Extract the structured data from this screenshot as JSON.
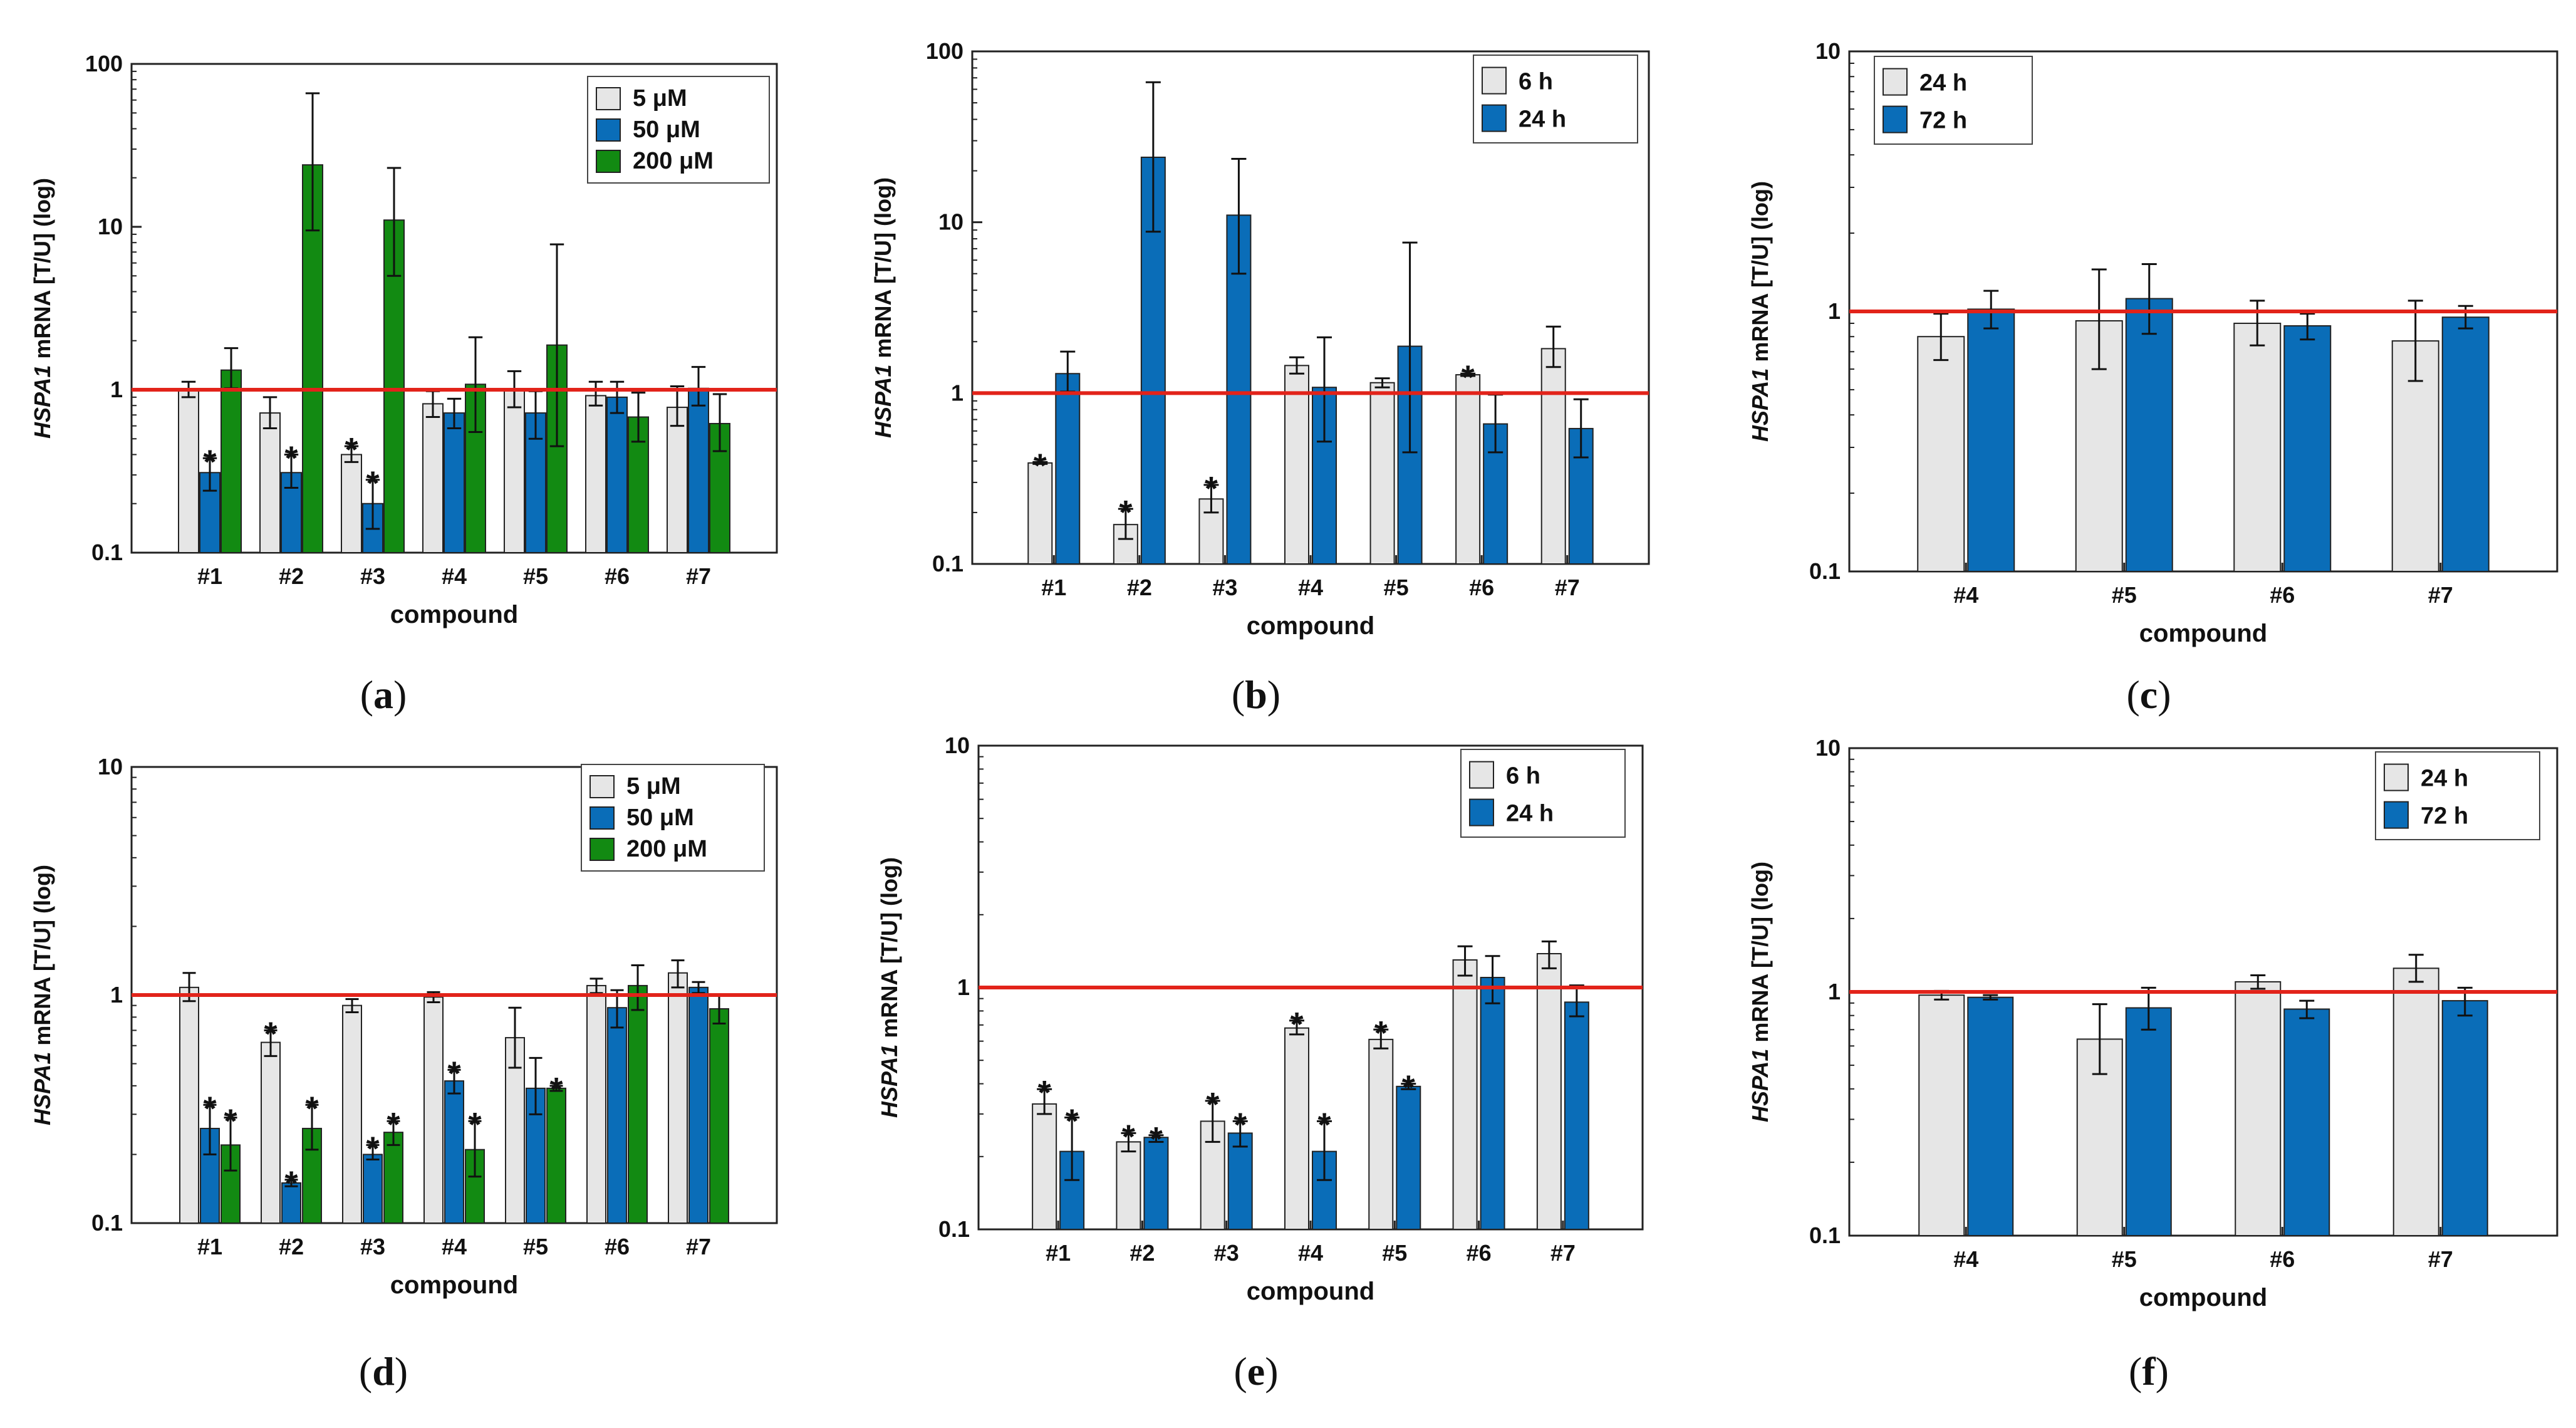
{
  "colors": {
    "light": "#e6e6e6",
    "blue": "#0a6db8",
    "green": "#128a12",
    "reference_line": "#e2231a"
  },
  "chart_data": [
    {
      "type": "bar",
      "panel": "a",
      "xlabel": "compound",
      "ylabel_italic": "HSPA1",
      "ylabel_rest": " mRNA  [T/U] (log)",
      "yscale": "log",
      "ylim": [
        0.1,
        100
      ],
      "yticks": [
        "0.1",
        "1",
        "10",
        "100"
      ],
      "reference_line": 1,
      "legend_position": "top-right",
      "categories": [
        "#1",
        "#2",
        "#3",
        "#4",
        "#5",
        "#6",
        "#7"
      ],
      "series": [
        {
          "name": "5 μM",
          "color": "light",
          "values": [
            1.0,
            0.72,
            0.4,
            0.82,
            1.0,
            0.92,
            0.78
          ],
          "err_low": [
            0.9,
            0.58,
            0.36,
            0.68,
            0.78,
            0.8,
            0.6
          ],
          "err_high": [
            1.12,
            0.9,
            0.45,
            0.98,
            1.3,
            1.12,
            1.05
          ],
          "stars": [
            false,
            false,
            true,
            false,
            false,
            false,
            false
          ]
        },
        {
          "name": "50 μM",
          "color": "blue",
          "values": [
            0.31,
            0.31,
            0.2,
            0.72,
            0.72,
            0.9,
            1.02
          ],
          "err_low": [
            0.24,
            0.25,
            0.14,
            0.58,
            0.5,
            0.72,
            0.8
          ],
          "err_high": [
            0.38,
            0.4,
            0.28,
            0.88,
            0.98,
            1.12,
            1.38
          ],
          "stars": [
            true,
            true,
            true,
            false,
            false,
            false,
            false
          ]
        },
        {
          "name": "200 μM",
          "color": "green",
          "values": [
            1.32,
            24,
            11,
            1.08,
            1.88,
            0.68,
            0.62
          ],
          "err_low": [
            1.02,
            9.5,
            5.0,
            0.55,
            0.45,
            0.48,
            0.42
          ],
          "err_high": [
            1.8,
            66,
            23,
            2.1,
            7.8,
            0.96,
            0.94
          ],
          "stars": [
            false,
            false,
            false,
            false,
            false,
            false,
            false
          ]
        }
      ],
      "panel_label": "a"
    },
    {
      "type": "bar",
      "panel": "b",
      "xlabel": "compound",
      "ylabel_italic": "HSPA1",
      "ylabel_rest": " mRNA  [T/U] (log)",
      "yscale": "log",
      "ylim": [
        0.1,
        100
      ],
      "yticks": [
        "0.1",
        "1",
        "10",
        "100"
      ],
      "reference_line": 1,
      "legend_position": "top-right",
      "categories": [
        "#1",
        "#2",
        "#3",
        "#4",
        "#5",
        "#6",
        "#7"
      ],
      "series": [
        {
          "name": "6 h",
          "color": "light",
          "values": [
            0.39,
            0.17,
            0.24,
            1.45,
            1.15,
            1.28,
            1.82
          ],
          "err_low": [
            0.385,
            0.14,
            0.2,
            1.3,
            1.08,
            1.26,
            1.42
          ],
          "err_high": [
            0.395,
            0.21,
            0.29,
            1.62,
            1.22,
            1.3,
            2.45
          ],
          "stars": [
            true,
            true,
            true,
            false,
            false,
            true,
            false
          ]
        },
        {
          "name": "24 h",
          "color": "blue",
          "values": [
            1.3,
            24,
            11,
            1.08,
            1.88,
            0.66,
            0.62
          ],
          "err_low": [
            1.02,
            8.8,
            5.0,
            0.52,
            0.45,
            0.45,
            0.42
          ],
          "err_high": [
            1.75,
            66,
            23.5,
            2.12,
            7.6,
            0.98,
            0.92
          ],
          "stars": [
            false,
            false,
            false,
            false,
            false,
            false,
            false
          ]
        }
      ],
      "panel_label": "b"
    },
    {
      "type": "bar",
      "panel": "c",
      "xlabel": "compound",
      "ylabel_italic": "HSPA1",
      "ylabel_rest": " mRNA  [T/U] (log)",
      "yscale": "log",
      "ylim": [
        0.1,
        10
      ],
      "yticks": [
        "0.1",
        "1",
        "10"
      ],
      "reference_line": 1,
      "legend_position": "top-left",
      "categories": [
        "#4",
        "#5",
        "#6",
        "#7"
      ],
      "series": [
        {
          "name": "24 h",
          "color": "light",
          "values": [
            0.8,
            0.92,
            0.9,
            0.77
          ],
          "err_low": [
            0.65,
            0.6,
            0.74,
            0.54
          ],
          "err_high": [
            0.98,
            1.45,
            1.1,
            1.1
          ],
          "stars": [
            false,
            false,
            false,
            false
          ]
        },
        {
          "name": "72 h",
          "color": "blue",
          "values": [
            1.02,
            1.12,
            0.88,
            0.95
          ],
          "err_low": [
            0.86,
            0.82,
            0.78,
            0.86
          ],
          "err_high": [
            1.2,
            1.52,
            0.98,
            1.05
          ],
          "stars": [
            false,
            false,
            false,
            false
          ]
        }
      ],
      "panel_label": "c"
    },
    {
      "type": "bar",
      "panel": "d",
      "xlabel": "compound",
      "ylabel_italic": "HSPA1",
      "ylabel_rest": " mRNA  [T/U] (log)",
      "yscale": "log",
      "ylim": [
        0.1,
        10
      ],
      "yticks": [
        "0.1",
        "1",
        "10"
      ],
      "reference_line": 1,
      "legend_position": "top-right",
      "categories": [
        "#1",
        "#2",
        "#3",
        "#4",
        "#5",
        "#6",
        "#7"
      ],
      "series": [
        {
          "name": "5 μM",
          "color": "light",
          "values": [
            1.08,
            0.62,
            0.9,
            0.98,
            0.65,
            1.1,
            1.25
          ],
          "err_low": [
            0.94,
            0.54,
            0.84,
            0.93,
            0.48,
            1.02,
            1.08
          ],
          "err_high": [
            1.25,
            0.7,
            0.96,
            1.03,
            0.88,
            1.18,
            1.42
          ],
          "stars": [
            false,
            true,
            false,
            false,
            false,
            false,
            false
          ]
        },
        {
          "name": "50 μM",
          "color": "blue",
          "values": [
            0.26,
            0.15,
            0.2,
            0.42,
            0.39,
            0.88,
            1.08
          ],
          "err_low": [
            0.2,
            0.145,
            0.19,
            0.37,
            0.3,
            0.72,
            1.02
          ],
          "err_high": [
            0.33,
            0.155,
            0.22,
            0.47,
            0.53,
            1.05,
            1.14
          ],
          "stars": [
            true,
            true,
            true,
            true,
            false,
            false,
            false
          ]
        },
        {
          "name": "200 μM",
          "color": "green",
          "values": [
            0.22,
            0.26,
            0.25,
            0.21,
            0.39,
            1.1,
            0.87
          ],
          "err_low": [
            0.17,
            0.21,
            0.22,
            0.16,
            0.38,
            0.86,
            0.75
          ],
          "err_high": [
            0.29,
            0.33,
            0.28,
            0.28,
            0.4,
            1.35,
            1.0
          ],
          "stars": [
            true,
            true,
            true,
            true,
            true,
            false,
            false
          ]
        }
      ],
      "panel_label": "d"
    },
    {
      "type": "bar",
      "panel": "e",
      "xlabel": "compound",
      "ylabel_italic": "HSPA1",
      "ylabel_rest": " mRNA  [T/U] (log)",
      "yscale": "log",
      "ylim": [
        0.1,
        10
      ],
      "yticks": [
        "0.1",
        "1",
        "10"
      ],
      "reference_line": 1,
      "legend_position": "top-right",
      "categories": [
        "#1",
        "#2",
        "#3",
        "#4",
        "#5",
        "#6",
        "#7"
      ],
      "series": [
        {
          "name": "6 h",
          "color": "light",
          "values": [
            0.33,
            0.23,
            0.28,
            0.68,
            0.61,
            1.3,
            1.38
          ],
          "err_low": [
            0.3,
            0.21,
            0.23,
            0.64,
            0.56,
            1.12,
            1.2
          ],
          "err_high": [
            0.38,
            0.25,
            0.34,
            0.73,
            0.67,
            1.48,
            1.55
          ],
          "stars": [
            true,
            true,
            true,
            true,
            true,
            false,
            false
          ]
        },
        {
          "name": "24 h",
          "color": "blue",
          "values": [
            0.21,
            0.24,
            0.25,
            0.21,
            0.39,
            1.1,
            0.87
          ],
          "err_low": [
            0.16,
            0.23,
            0.22,
            0.16,
            0.38,
            0.86,
            0.76
          ],
          "err_high": [
            0.29,
            0.245,
            0.28,
            0.28,
            0.4,
            1.35,
            1.02
          ],
          "stars": [
            true,
            true,
            true,
            true,
            true,
            false,
            false
          ]
        }
      ],
      "panel_label": "e"
    },
    {
      "type": "bar",
      "panel": "f",
      "xlabel": "compound",
      "ylabel_italic": "HSPA1",
      "ylabel_rest": " mRNA  [T/U] (log)",
      "yscale": "log",
      "ylim": [
        0.1,
        10
      ],
      "yticks": [
        "0.1",
        "1",
        "10"
      ],
      "reference_line": 1,
      "legend_position": "top-right",
      "categories": [
        "#4",
        "#5",
        "#6",
        "#7"
      ],
      "series": [
        {
          "name": "24 h",
          "color": "light",
          "values": [
            0.97,
            0.64,
            1.1,
            1.25
          ],
          "err_low": [
            0.93,
            0.46,
            1.03,
            1.1
          ],
          "err_high": [
            1.01,
            0.89,
            1.17,
            1.42
          ],
          "stars": [
            false,
            false,
            false,
            false
          ]
        },
        {
          "name": "72 h",
          "color": "blue",
          "values": [
            0.95,
            0.86,
            0.85,
            0.92
          ],
          "err_low": [
            0.93,
            0.7,
            0.78,
            0.8
          ],
          "err_high": [
            0.97,
            1.04,
            0.92,
            1.04
          ],
          "stars": [
            false,
            false,
            false,
            false
          ]
        }
      ],
      "panel_label": "f"
    }
  ]
}
